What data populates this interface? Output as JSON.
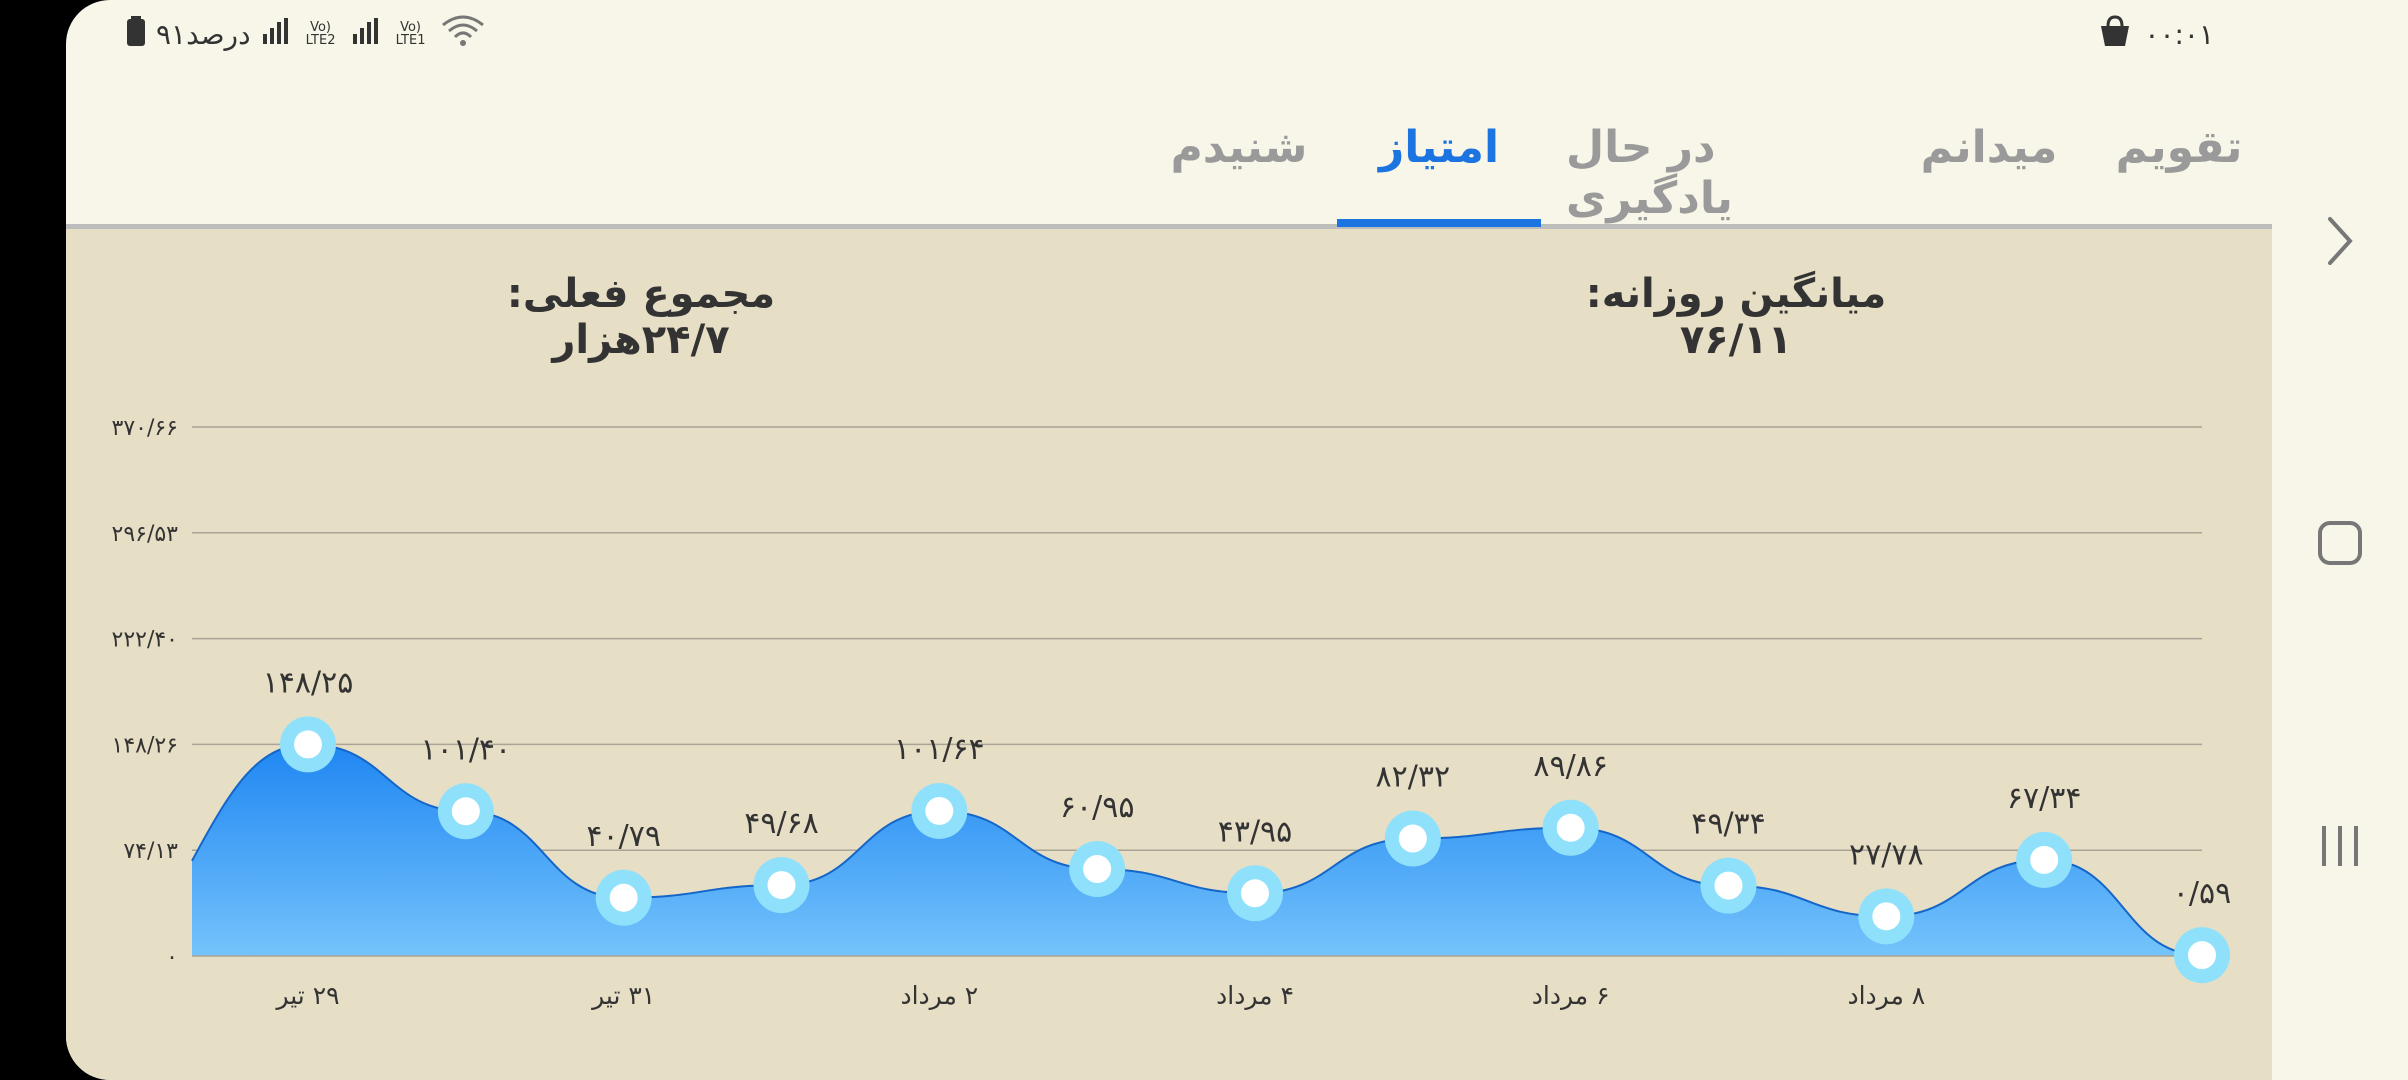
{
  "status_bar": {
    "time": "۰۰:۰۱",
    "battery_text": "۹۱درصد",
    "sim2_label": "Vo) LTE2",
    "sim1_label": "Vo) LTE1",
    "icons": [
      "shopping-bag-icon",
      "battery-icon",
      "signal-icon",
      "wifi-icon"
    ]
  },
  "tabs": [
    {
      "label": "تقویم",
      "active": false
    },
    {
      "label": "میدانم",
      "active": false
    },
    {
      "label": "در حال یادگیری",
      "active": false
    },
    {
      "label": "امتیاز",
      "active": true
    },
    {
      "label": "شنیدم",
      "active": false
    }
  ],
  "stats": {
    "daily_average": "میانگین روزانه: ۷۶/۱۱",
    "current_total": "مجموع فعلی: ۲۴/۷هزار"
  },
  "colors": {
    "accent": "#1c74e0",
    "panel_bg": "#e6dec5",
    "area_top": "#1f86f2",
    "area_bottom": "#74c3fb",
    "point_ring": "#8fe1fb"
  },
  "chart_data": {
    "type": "area",
    "y_ticks": [
      "۰",
      "۷۴/۱۳",
      "۱۴۸/۲۶",
      "۲۲۲/۴۰",
      "۲۹۶/۵۳",
      "۳۷۰/۶۶"
    ],
    "y_tick_values": [
      0,
      74.13,
      148.26,
      222.4,
      296.53,
      370.66
    ],
    "ylim": [
      0,
      370.66
    ],
    "x_tick_labels": [
      "۲۹ تیر",
      "۳۱ تیر",
      "۲ مرداد",
      "۴ مرداد",
      "۶ مرداد",
      "۸ مرداد"
    ],
    "x_tick_indices": [
      0,
      2,
      4,
      6,
      8,
      10
    ],
    "values": [
      148.25,
      101.4,
      40.79,
      49.68,
      101.64,
      60.95,
      43.95,
      82.32,
      89.86,
      49.34,
      27.78,
      67.34,
      0.59
    ],
    "value_labels": [
      "۱۴۸/۲۵",
      "۱۰۱/۴۰",
      "۴۰/۷۹",
      "۴۹/۶۸",
      "۱۰۱/۶۴",
      "۶۰/۹۵",
      "۴۳/۹۵",
      "۸۲/۳۲",
      "۸۹/۸۶",
      "۴۹/۳۴",
      "۲۷/۷۸",
      "۶۷/۳۴",
      "۰/۵۹"
    ],
    "grid": true
  },
  "nav": {
    "back": "chevron-right-icon",
    "home": "home-square-icon",
    "recents": "recents-icon"
  }
}
